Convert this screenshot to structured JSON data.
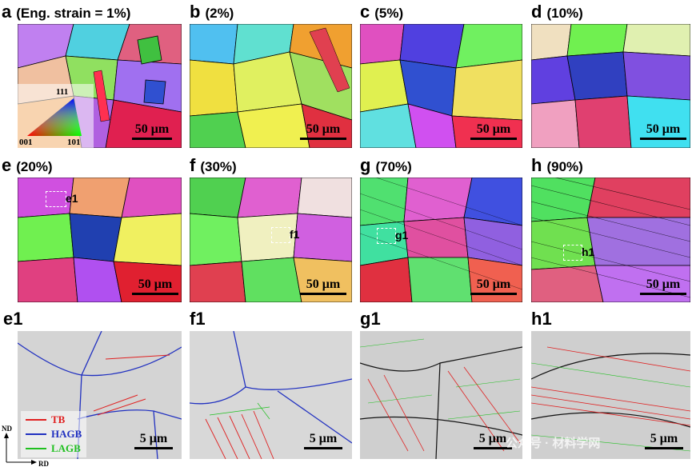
{
  "panels": [
    {
      "id": "a",
      "letter": "a",
      "condition": "(Eng. strain = 1%)",
      "scale": "50 μm"
    },
    {
      "id": "b",
      "letter": "b",
      "condition": "(2%)",
      "scale": "50 μm"
    },
    {
      "id": "c",
      "letter": "c",
      "condition": "(5%)",
      "scale": "50 μm"
    },
    {
      "id": "d",
      "letter": "d",
      "condition": "(10%)",
      "scale": "50 μm"
    },
    {
      "id": "e",
      "letter": "e",
      "condition": "(20%)",
      "scale": "50 μm",
      "inset": "e1"
    },
    {
      "id": "f",
      "letter": "f",
      "condition": "(30%)",
      "scale": "50 μm",
      "inset": "f1"
    },
    {
      "id": "g",
      "letter": "g",
      "condition": "(70%)",
      "scale": "50 μm",
      "inset": "g1"
    },
    {
      "id": "h",
      "letter": "h",
      "condition": "(90%)",
      "scale": "50 μm",
      "inset": "h1"
    },
    {
      "id": "e1",
      "letter": "e1",
      "condition": "",
      "scale": "5 μm"
    },
    {
      "id": "f1",
      "letter": "f1",
      "condition": "",
      "scale": "5 μm"
    },
    {
      "id": "g1",
      "letter": "g1",
      "condition": "",
      "scale": "5 μm"
    },
    {
      "id": "h1",
      "letter": "h1",
      "condition": "",
      "scale": "5 μm"
    }
  ],
  "ipf_key": {
    "top": "111",
    "left": "001",
    "right": "101"
  },
  "legend": [
    {
      "label": "TB",
      "color": "#e02020"
    },
    {
      "label": "HAGB",
      "color": "#2030c0"
    },
    {
      "label": "LAGB",
      "color": "#20c020"
    }
  ],
  "axes": {
    "vertical": "ND",
    "horizontal": "RD"
  },
  "watermark": "公众号 · 材料学网"
}
